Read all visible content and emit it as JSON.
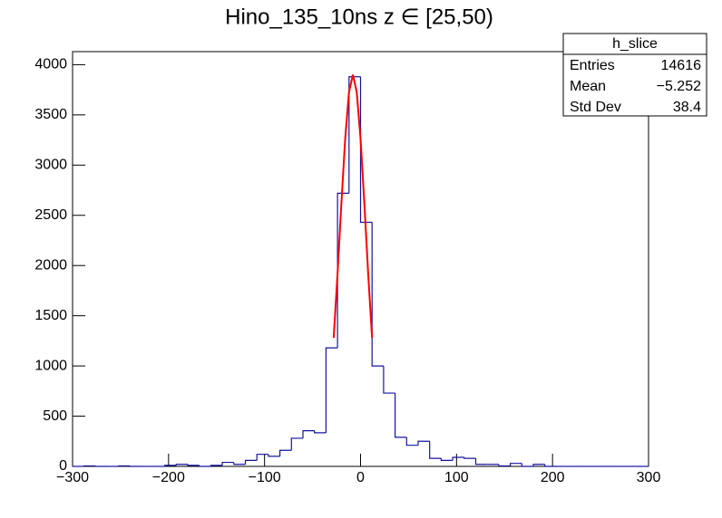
{
  "chart_data": {
    "type": "histogram",
    "title": "Hino_135_10ns z  ∈ [25,50)",
    "bins": [
      -300,
      -288,
      -276,
      -264,
      -252,
      -240,
      -228,
      -216,
      -204,
      -192,
      -180,
      -168,
      -156,
      -144,
      -132,
      -120,
      -108,
      -96,
      -84,
      -72,
      -60,
      -48,
      -36,
      -24,
      -12,
      0,
      12,
      24,
      36,
      48,
      60,
      72,
      84,
      96,
      108,
      120,
      132,
      144,
      156,
      168,
      180,
      192,
      204,
      216,
      228,
      240,
      252,
      264,
      276,
      288,
      300
    ],
    "values": [
      0,
      5,
      0,
      0,
      5,
      0,
      0,
      0,
      10,
      20,
      10,
      0,
      10,
      40,
      20,
      60,
      120,
      100,
      160,
      280,
      355,
      335,
      1180,
      2720,
      3880,
      2430,
      1000,
      730,
      290,
      210,
      250,
      80,
      60,
      90,
      80,
      20,
      20,
      5,
      30,
      0,
      20,
      0,
      0,
      0,
      0,
      0,
      0,
      0,
      0,
      0
    ],
    "color": "#14149e",
    "fit": {
      "color": "#ff0000",
      "x": [
        -28,
        -24,
        -20,
        -16,
        -12,
        -8,
        -4,
        0,
        4,
        8,
        12
      ],
      "values": [
        1280,
        1911,
        2612,
        3263,
        3730,
        3900,
        3730,
        3263,
        2612,
        1911,
        1280
      ]
    },
    "xlim": [
      -300,
      300
    ],
    "xticks": [
      {
        "value": -300,
        "label": "−300"
      },
      {
        "value": -200,
        "label": "−200"
      },
      {
        "value": -100,
        "label": "−100"
      },
      0,
      100,
      200,
      300
    ],
    "ylim": [
      0,
      4130
    ],
    "yticks": [
      0,
      500,
      1000,
      1500,
      2000,
      2500,
      3000,
      3500,
      4000
    ],
    "stats": {
      "title": "h_slice",
      "rows": [
        [
          "Entries",
          "14616"
        ],
        [
          "Mean",
          "−5.252"
        ],
        [
          "Std Dev",
          "38.4"
        ]
      ]
    }
  }
}
